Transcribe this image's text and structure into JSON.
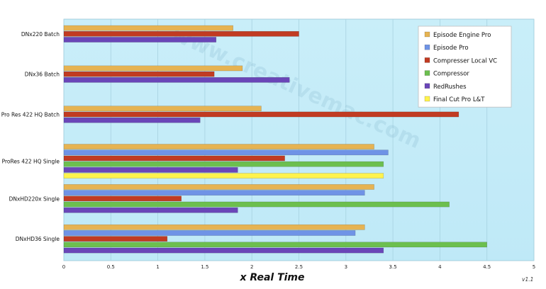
{
  "chart_data": {
    "type": "bar",
    "orientation": "horizontal",
    "categories": [
      "DNx220 Batch",
      "DNx36 Batch",
      "Pro Res 422 HQ Batch",
      "ProRes 422 HQ Single",
      "DNxHD220x Single",
      "DNxHD36 Single"
    ],
    "series": [
      {
        "name": "Episode Engine Pro",
        "color": "#e6b352",
        "values": [
          1.8,
          1.9,
          2.1,
          3.3,
          3.3,
          3.2
        ]
      },
      {
        "name": "Episode Pro",
        "color": "#6f93e6",
        "values": [
          null,
          null,
          null,
          3.45,
          3.2,
          3.1
        ]
      },
      {
        "name": "Compresser Local VC",
        "color": "#c13b22",
        "values": [
          2.5,
          1.6,
          4.2,
          2.35,
          1.25,
          1.1
        ]
      },
      {
        "name": "Compressor",
        "color": "#6cbf4f",
        "values": [
          null,
          null,
          null,
          3.4,
          4.1,
          4.5
        ]
      },
      {
        "name": "RedRushes",
        "color": "#6a46b8",
        "values": [
          1.62,
          2.4,
          1.45,
          1.85,
          1.85,
          3.4
        ]
      },
      {
        "name": "Final Cut Pro L&T",
        "color": "#fff34d",
        "values": [
          null,
          null,
          null,
          3.4,
          null,
          null
        ]
      }
    ],
    "xlabel": "x Real Time",
    "xlim": [
      0,
      5
    ],
    "xticks": [
      "0",
      "0.5",
      "1",
      "1.5",
      "2",
      "2.5",
      "3",
      "3.5",
      "4",
      "4.5",
      "5"
    ],
    "grid": "vertical",
    "legend_position": "top-right"
  },
  "watermark": "www.creativemac.com",
  "version_label": "v1.1"
}
